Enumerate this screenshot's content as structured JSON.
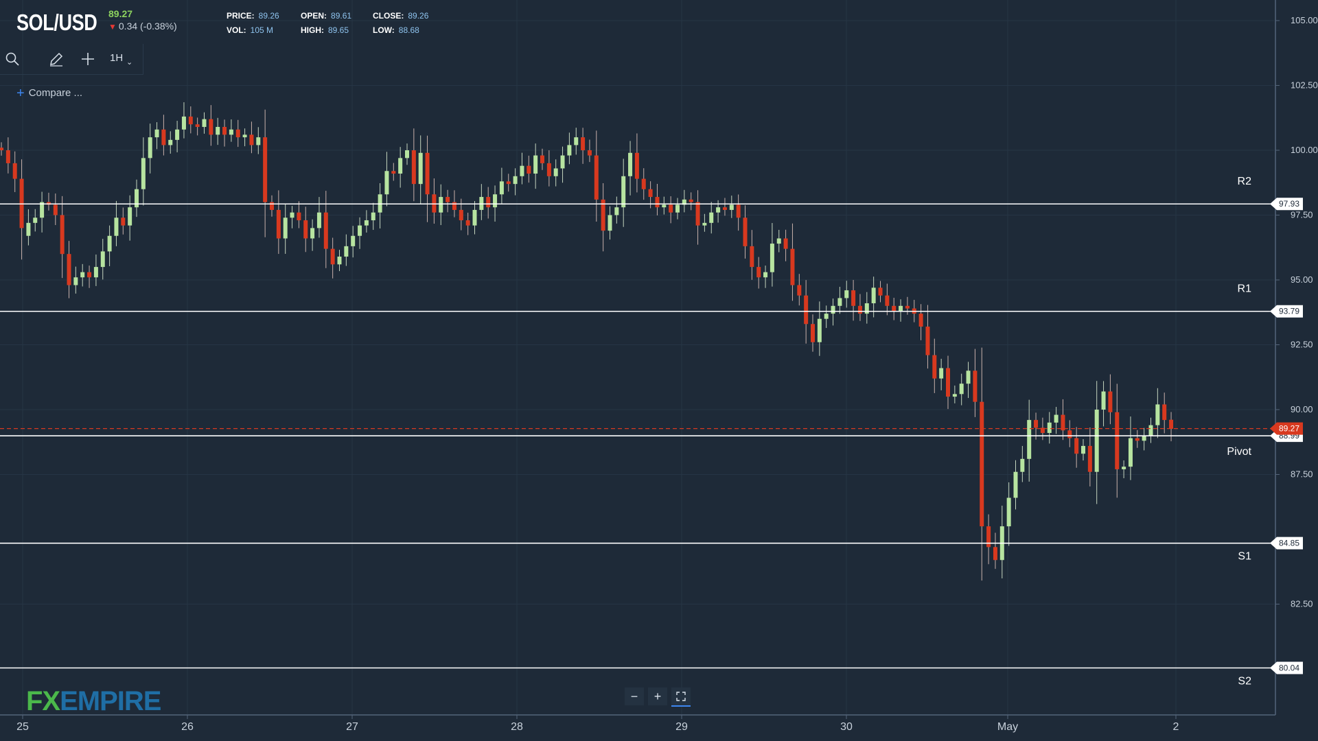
{
  "header": {
    "symbol": "SOL/USD",
    "last_price": "89.27",
    "change": "0.34 (-0.38%)",
    "change_direction": "down",
    "stats": {
      "price_label": "PRICE:",
      "price": "89.26",
      "open_label": "OPEN:",
      "open": "89.61",
      "close_label": "CLOSE:",
      "close": "89.26",
      "vol_label": "VOL:",
      "vol": "105 M",
      "high_label": "HIGH:",
      "high": "89.65",
      "low_label": "LOW:",
      "low": "88.68"
    }
  },
  "toolbar": {
    "icons": [
      "search-icon",
      "pencil-icon",
      "crosshair-icon"
    ],
    "interval": "1H"
  },
  "compare": {
    "label": "Compare ..."
  },
  "logo": {
    "fx": "FX",
    "rest": "EMPIRE"
  },
  "zoom": {
    "icons": [
      "zoom-out-icon",
      "zoom-in-icon",
      "fit-screen-icon"
    ]
  },
  "colors": {
    "background": "#1e2a38",
    "up_candle": "#b7e4a0",
    "down_candle": "#d8391f",
    "level_line": "#ffffff",
    "current_price": "#d8391f"
  },
  "chart_data": {
    "type": "candlestick",
    "y_range": [
      79.0,
      106.0
    ],
    "y_ticks": [
      "105.00",
      "102.50",
      "100.00",
      "97.50",
      "95.00",
      "92.50",
      "90.00",
      "87.50",
      "82.50"
    ],
    "x_ticks": [
      "25",
      "26",
      "27",
      "28",
      "29",
      "30",
      "May",
      "2"
    ],
    "levels": [
      {
        "name": "R2",
        "value": 97.93,
        "label": "97.93"
      },
      {
        "name": "R1",
        "value": 93.79,
        "label": "93.79"
      },
      {
        "name": "Pivot",
        "value": 88.99,
        "label": "88.99"
      },
      {
        "name": "S1",
        "value": 84.85,
        "label": "84.85"
      },
      {
        "name": "S2",
        "value": 80.04,
        "label": "80.04"
      }
    ],
    "current_price": {
      "value": 89.27,
      "label": "89.27"
    },
    "closes": [
      100.0,
      99.5,
      98.9,
      97.0,
      97.2,
      97.4,
      98.0,
      97.9,
      97.5,
      96.0,
      94.8,
      95.1,
      95.3,
      95.1,
      95.5,
      96.1,
      96.7,
      97.4,
      97.1,
      97.8,
      98.5,
      99.7,
      100.5,
      100.8,
      100.2,
      100.4,
      100.8,
      101.3,
      101.0,
      100.9,
      101.2,
      100.6,
      100.9,
      100.6,
      100.8,
      100.5,
      100.6,
      100.2,
      100.5,
      98.0,
      97.7,
      96.6,
      97.4,
      97.6,
      97.3,
      96.6,
      97.0,
      97.6,
      96.2,
      95.6,
      95.9,
      96.3,
      96.7,
      97.1,
      97.3,
      97.6,
      98.3,
      99.2,
      99.1,
      99.7,
      100.0,
      98.7,
      99.9,
      98.3,
      97.6,
      98.2,
      98.0,
      97.7,
      97.3,
      97.1,
      97.7,
      98.2,
      97.8,
      98.3,
      98.8,
      98.7,
      99.0,
      99.4,
      99.1,
      99.8,
      99.5,
      99.0,
      99.3,
      99.8,
      100.2,
      100.5,
      100.0,
      99.8,
      98.1,
      96.9,
      97.5,
      97.8,
      99.0,
      99.9,
      98.9,
      98.5,
      98.2,
      97.8,
      97.9,
      97.6,
      97.9,
      98.1,
      98.0,
      97.1,
      97.2,
      97.6,
      97.8,
      97.7,
      97.9,
      97.4,
      96.3,
      95.5,
      95.1,
      95.3,
      96.4,
      96.6,
      96.2,
      94.8,
      94.4,
      93.3,
      92.6,
      93.5,
      93.7,
      94.0,
      94.3,
      94.6,
      94.0,
      93.7,
      94.1,
      94.7,
      94.4,
      94.0,
      93.8,
      94.0,
      93.9,
      93.7,
      93.2,
      92.1,
      91.2,
      91.6,
      90.5,
      90.6,
      91.0,
      91.5,
      90.3,
      85.5,
      84.7,
      84.2,
      85.5,
      86.6,
      87.6,
      88.1,
      89.6,
      89.3,
      89.1,
      89.5,
      89.8,
      89.2,
      88.9,
      88.3,
      88.6,
      87.6,
      90.0,
      90.7,
      89.9,
      87.7,
      87.8,
      88.9,
      88.8,
      89.0,
      89.4,
      90.2,
      89.6,
      89.26
    ],
    "opens": [
      100.1,
      100.0,
      99.5,
      98.9,
      96.7,
      97.2,
      97.4,
      98.0,
      97.9,
      97.5,
      96.0,
      94.8,
      95.1,
      95.3,
      95.1,
      95.5,
      96.1,
      96.7,
      97.4,
      97.1,
      97.8,
      98.5,
      99.7,
      100.5,
      100.8,
      100.2,
      100.4,
      100.8,
      101.3,
      101.0,
      100.9,
      101.2,
      100.6,
      100.9,
      100.6,
      100.8,
      100.5,
      100.6,
      100.2,
      100.5,
      98.0,
      97.7,
      96.6,
      97.4,
      97.6,
      97.3,
      96.6,
      97.0,
      97.6,
      96.2,
      95.6,
      95.9,
      96.3,
      96.7,
      97.1,
      97.3,
      97.6,
      98.3,
      99.2,
      99.1,
      99.7,
      100.0,
      98.7,
      99.9,
      98.3,
      97.6,
      98.2,
      98.0,
      97.7,
      97.3,
      97.1,
      97.7,
      98.2,
      97.8,
      98.3,
      98.8,
      98.7,
      99.0,
      99.4,
      99.1,
      99.8,
      99.5,
      99.0,
      99.3,
      99.8,
      100.2,
      100.5,
      100.0,
      99.8,
      98.1,
      96.9,
      97.5,
      97.8,
      99.0,
      99.9,
      98.9,
      98.5,
      98.2,
      97.8,
      97.9,
      97.6,
      97.9,
      98.1,
      98.0,
      97.1,
      97.2,
      97.6,
      97.8,
      97.7,
      97.9,
      97.4,
      96.3,
      95.5,
      95.1,
      95.3,
      96.4,
      96.6,
      96.2,
      94.8,
      94.4,
      93.3,
      92.6,
      93.5,
      93.7,
      94.0,
      94.3,
      94.6,
      94.0,
      93.7,
      94.1,
      94.7,
      94.4,
      94.0,
      93.8,
      94.0,
      93.9,
      93.7,
      93.2,
      92.1,
      91.2,
      91.6,
      90.5,
      90.6,
      91.0,
      91.5,
      90.3,
      85.5,
      84.7,
      84.2,
      85.5,
      86.6,
      87.6,
      88.1,
      89.6,
      89.3,
      89.1,
      89.5,
      89.8,
      89.2,
      88.9,
      88.3,
      88.6,
      87.6,
      90.0,
      90.7,
      89.9,
      87.7,
      87.8,
      88.9,
      88.8,
      89.0,
      89.4,
      90.2,
      89.61
    ]
  }
}
